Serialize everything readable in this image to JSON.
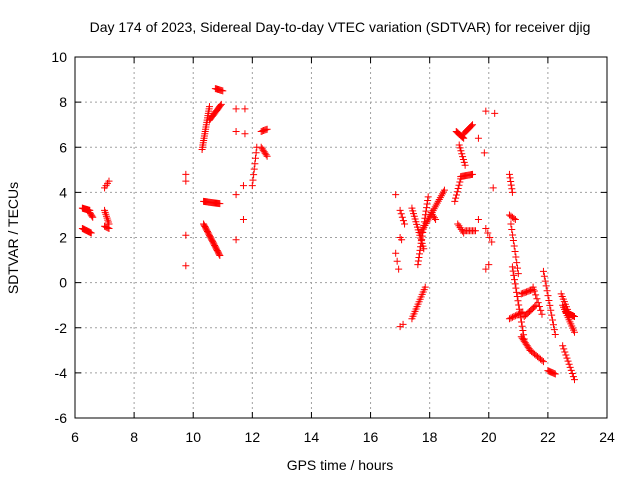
{
  "chart_data": {
    "type": "scatter",
    "title": "Day 174 of 2023, Sidereal Day-to-day VTEC variation (SDTVAR) for receiver djig",
    "xlabel": "GPS time / hours",
    "ylabel": "SDTVAR / TECUs",
    "xlim": [
      6,
      24
    ],
    "ylim": [
      -6,
      10
    ],
    "xticks": [
      6,
      8,
      10,
      12,
      14,
      16,
      18,
      20,
      22,
      24
    ],
    "yticks": [
      -6,
      -4,
      -2,
      0,
      2,
      4,
      6,
      8,
      10
    ],
    "grid": true,
    "marker": "+",
    "series": [
      {
        "name": "SDTVAR",
        "color": "#ff0000",
        "segments": [
          {
            "x0": 6.25,
            "x1": 6.5,
            "y0": 3.3,
            "y1": 3.2,
            "n": 14
          },
          {
            "x0": 6.5,
            "x1": 6.6,
            "y0": 3.1,
            "y1": 2.9,
            "n": 5
          },
          {
            "x0": 6.25,
            "x1": 6.55,
            "y0": 2.4,
            "y1": 2.2,
            "n": 12
          },
          {
            "x0": 7.0,
            "x1": 7.15,
            "y0": 3.2,
            "y1": 2.6,
            "n": 8
          },
          {
            "x0": 7.0,
            "x1": 7.15,
            "y0": 2.5,
            "y1": 2.4,
            "n": 5
          },
          {
            "x0": 7.0,
            "x1": 7.15,
            "y0": 4.2,
            "y1": 4.5,
            "n": 4
          },
          {
            "x0": 9.75,
            "x1": 9.75,
            "y0": 4.5,
            "y1": 4.8,
            "n": 2
          },
          {
            "x0": 9.75,
            "x1": 9.75,
            "y0": 2.1,
            "y1": 2.1,
            "n": 1
          },
          {
            "x0": 9.75,
            "x1": 9.75,
            "y0": 0.75,
            "y1": 0.75,
            "n": 1
          },
          {
            "x0": 10.3,
            "x1": 10.55,
            "y0": 5.9,
            "y1": 7.8,
            "n": 20
          },
          {
            "x0": 10.55,
            "x1": 10.95,
            "y0": 7.2,
            "y1": 7.9,
            "n": 14
          },
          {
            "x0": 10.75,
            "x1": 11.0,
            "y0": 8.6,
            "y1": 8.5,
            "n": 8
          },
          {
            "x0": 10.35,
            "x1": 10.9,
            "y0": 3.6,
            "y1": 3.5,
            "n": 18
          },
          {
            "x0": 10.35,
            "x1": 10.9,
            "y0": 2.6,
            "y1": 1.2,
            "n": 26
          },
          {
            "x0": 11.45,
            "x1": 11.75,
            "y0": 7.7,
            "y1": 7.7,
            "n": 2
          },
          {
            "x0": 11.45,
            "x1": 11.75,
            "y0": 6.7,
            "y1": 6.6,
            "n": 2
          },
          {
            "x0": 11.45,
            "x1": 11.45,
            "y0": 3.9,
            "y1": 3.9,
            "n": 1
          },
          {
            "x0": 11.7,
            "x1": 11.7,
            "y0": 4.3,
            "y1": 4.3,
            "n": 1
          },
          {
            "x0": 11.7,
            "x1": 11.7,
            "y0": 2.8,
            "y1": 2.8,
            "n": 1
          },
          {
            "x0": 11.45,
            "x1": 11.45,
            "y0": 1.9,
            "y1": 1.9,
            "n": 1
          },
          {
            "x0": 12.0,
            "x1": 12.15,
            "y0": 4.3,
            "y1": 6.0,
            "n": 8
          },
          {
            "x0": 12.3,
            "x1": 12.5,
            "y0": 6.7,
            "y1": 6.8,
            "n": 6
          },
          {
            "x0": 12.3,
            "x1": 12.5,
            "y0": 6.0,
            "y1": 5.6,
            "n": 7
          },
          {
            "x0": 16.85,
            "x1": 16.85,
            "y0": 3.9,
            "y1": 3.9,
            "n": 1
          },
          {
            "x0": 16.85,
            "x1": 16.95,
            "y0": 1.3,
            "y1": 0.6,
            "n": 3
          },
          {
            "x0": 17.0,
            "x1": 17.15,
            "y0": 3.2,
            "y1": 2.6,
            "n": 5
          },
          {
            "x0": 17.0,
            "x1": 17.05,
            "y0": 2.0,
            "y1": 1.9,
            "n": 2
          },
          {
            "x0": 17.0,
            "x1": 17.1,
            "y0": -1.95,
            "y1": -1.85,
            "n": 2
          },
          {
            "x0": 17.4,
            "x1": 17.8,
            "y0": 3.3,
            "y1": 1.5,
            "n": 16
          },
          {
            "x0": 17.4,
            "x1": 17.85,
            "y0": -1.6,
            "y1": -0.2,
            "n": 14
          },
          {
            "x0": 17.6,
            "x1": 17.95,
            "y0": 0.8,
            "y1": 3.8,
            "n": 20
          },
          {
            "x0": 17.7,
            "x1": 18.5,
            "y0": 2.2,
            "y1": 4.1,
            "n": 24
          },
          {
            "x0": 18.05,
            "x1": 18.2,
            "y0": 3.1,
            "y1": 2.8,
            "n": 5
          },
          {
            "x0": 18.9,
            "x1": 19.15,
            "y0": 6.7,
            "y1": 6.4,
            "n": 10
          },
          {
            "x0": 19.15,
            "x1": 19.45,
            "y0": 6.6,
            "y1": 7.0,
            "n": 10
          },
          {
            "x0": 19.0,
            "x1": 19.2,
            "y0": 6.1,
            "y1": 5.2,
            "n": 8
          },
          {
            "x0": 18.85,
            "x1": 19.05,
            "y0": 3.6,
            "y1": 4.6,
            "n": 8
          },
          {
            "x0": 19.05,
            "x1": 19.45,
            "y0": 4.7,
            "y1": 4.8,
            "n": 12
          },
          {
            "x0": 18.95,
            "x1": 19.15,
            "y0": 2.6,
            "y1": 2.2,
            "n": 6
          },
          {
            "x0": 19.2,
            "x1": 19.55,
            "y0": 2.3,
            "y1": 2.3,
            "n": 8
          },
          {
            "x0": 19.65,
            "x1": 19.65,
            "y0": 2.8,
            "y1": 2.8,
            "n": 1
          },
          {
            "x0": 19.65,
            "x1": 19.65,
            "y0": 6.4,
            "y1": 6.4,
            "n": 1
          },
          {
            "x0": 19.85,
            "x1": 19.85,
            "y0": 5.75,
            "y1": 5.75,
            "n": 1
          },
          {
            "x0": 19.9,
            "x1": 20.2,
            "y0": 7.6,
            "y1": 7.5,
            "n": 2
          },
          {
            "x0": 20.15,
            "x1": 20.15,
            "y0": 4.2,
            "y1": 4.2,
            "n": 1
          },
          {
            "x0": 19.9,
            "x1": 20.1,
            "y0": 2.4,
            "y1": 1.8,
            "n": 4
          },
          {
            "x0": 19.9,
            "x1": 20.0,
            "y0": 0.6,
            "y1": 0.8,
            "n": 2
          },
          {
            "x0": 20.7,
            "x1": 20.8,
            "y0": 4.8,
            "y1": 4.0,
            "n": 6
          },
          {
            "x0": 20.7,
            "x1": 20.9,
            "y0": 3.0,
            "y1": 2.8,
            "n": 5
          },
          {
            "x0": 20.75,
            "x1": 21.0,
            "y0": 2.6,
            "y1": 0.4,
            "n": 10
          },
          {
            "x0": 20.7,
            "x1": 21.15,
            "y0": -1.6,
            "y1": -1.3,
            "n": 10
          },
          {
            "x0": 20.8,
            "x1": 21.2,
            "y0": 0.7,
            "y1": -2.5,
            "n": 18
          },
          {
            "x0": 21.1,
            "x1": 21.5,
            "y0": -0.5,
            "y1": -0.3,
            "n": 10
          },
          {
            "x0": 21.1,
            "x1": 21.4,
            "y0": -2.4,
            "y1": -3.0,
            "n": 10
          },
          {
            "x0": 21.4,
            "x1": 21.85,
            "y0": -3.0,
            "y1": -3.5,
            "n": 10
          },
          {
            "x0": 21.2,
            "x1": 21.6,
            "y0": -1.5,
            "y1": -1.0,
            "n": 10
          },
          {
            "x0": 21.5,
            "x1": 21.8,
            "y0": -0.2,
            "y1": -1.4,
            "n": 8
          },
          {
            "x0": 21.85,
            "x1": 22.25,
            "y0": 0.5,
            "y1": -2.3,
            "n": 14
          },
          {
            "x0": 22.0,
            "x1": 22.25,
            "y0": -3.9,
            "y1": -4.05,
            "n": 8
          },
          {
            "x0": 22.45,
            "x1": 22.7,
            "y0": -0.5,
            "y1": -1.3,
            "n": 8
          },
          {
            "x0": 22.5,
            "x1": 22.9,
            "y0": -1.0,
            "y1": -2.2,
            "n": 14
          },
          {
            "x0": 22.6,
            "x1": 22.9,
            "y0": -1.3,
            "y1": -1.5,
            "n": 10
          },
          {
            "x0": 22.5,
            "x1": 22.9,
            "y0": -2.8,
            "y1": -4.3,
            "n": 12
          }
        ]
      }
    ]
  }
}
